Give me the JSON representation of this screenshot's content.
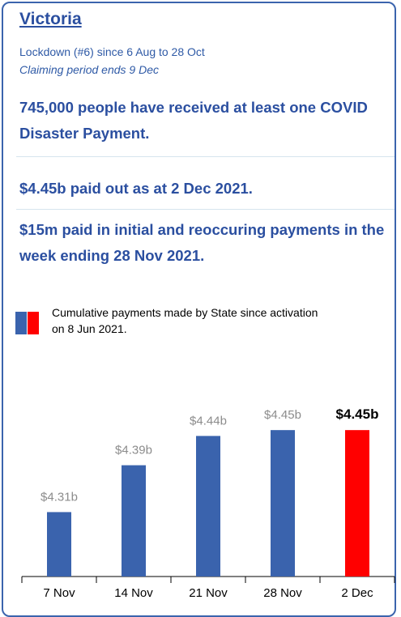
{
  "header": {
    "title": "Victoria",
    "lines": [
      "Lockdown (#6) since 6 Aug to 28 Oct",
      "Claiming period ends 9 Dec"
    ],
    "headlines": [
      "745,000 people have received at least one COVID Disaster Payment.",
      "$4.45b paid out as at 2 Dec 2021.",
      "$15m paid in initial and reoccuring payments in the week ending 28 Nov 2021."
    ]
  },
  "chart_data": {
    "type": "bar",
    "legend": "Cumulative payments made by State since activation on 8 Jun 2021.",
    "legend_colors": [
      "#3a63ad",
      "#ff0000"
    ],
    "categories": [
      "7 Nov",
      "14 Nov",
      "21 Nov",
      "28 Nov",
      "2 Dec"
    ],
    "values": [
      4.31,
      4.39,
      4.44,
      4.45,
      4.45
    ],
    "value_labels": [
      "$4.31b",
      "$4.39b",
      "$4.44b",
      "$4.45b",
      "$4.45b"
    ],
    "colors": [
      "#3a63ad",
      "#3a63ad",
      "#3a63ad",
      "#3a63ad",
      "#ff0000"
    ],
    "value_label_colors": [
      "#8c8c8c",
      "#8c8c8c",
      "#8c8c8c",
      "#8c8c8c",
      "#000000"
    ],
    "ylim": [
      4.2,
      4.5
    ]
  }
}
